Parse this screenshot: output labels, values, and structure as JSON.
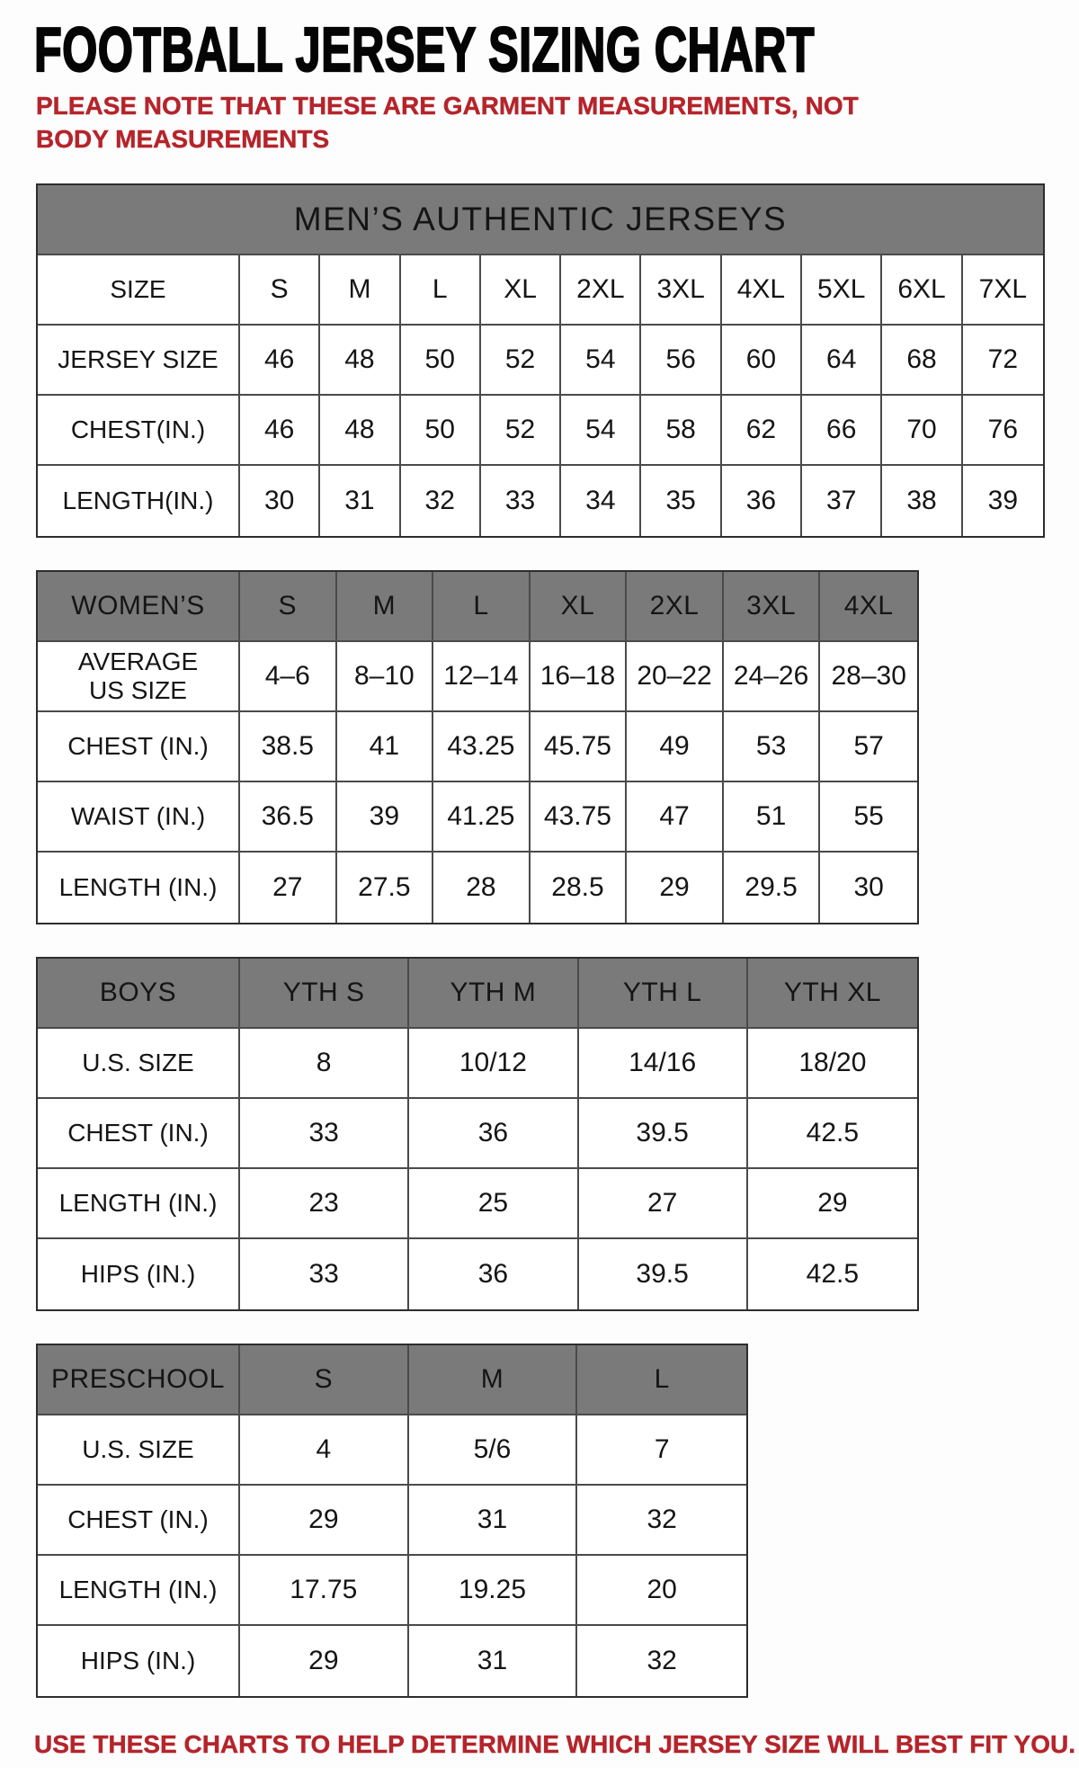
{
  "title": "FOOTBALL JERSEY SIZING CHART",
  "note": "PLEASE NOTE THAT THESE ARE GARMENT MEASUREMENTS, NOT BODY MEASUREMENTS",
  "footer": "USE THESE CHARTS TO HELP DETERMINE WHICH JERSEY SIZE WILL BEST FIT YOU.",
  "colors": {
    "accent_red": "#b5242b",
    "header_gray": "#7a7a7a"
  },
  "tables": {
    "mens": {
      "banner": "MEN’S AUTHENTIC JERSEYS",
      "rows": [
        {
          "label": "SIZE",
          "values": [
            "S",
            "M",
            "L",
            "XL",
            "2XL",
            "3XL",
            "4XL",
            "5XL",
            "6XL",
            "7XL"
          ]
        },
        {
          "label": "JERSEY SIZE",
          "values": [
            "46",
            "48",
            "50",
            "52",
            "54",
            "56",
            "60",
            "64",
            "68",
            "72"
          ]
        },
        {
          "label": "CHEST(IN.)",
          "values": [
            "46",
            "48",
            "50",
            "52",
            "54",
            "58",
            "62",
            "66",
            "70",
            "76"
          ]
        },
        {
          "label": "LENGTH(IN.)",
          "values": [
            "30",
            "31",
            "32",
            "33",
            "34",
            "35",
            "36",
            "37",
            "38",
            "39"
          ]
        }
      ]
    },
    "womens": {
      "header": {
        "label": "WOMEN’S",
        "sizes": [
          "S",
          "M",
          "L",
          "XL",
          "2XL",
          "3XL",
          "4XL"
        ]
      },
      "rows": [
        {
          "label": "AVERAGE\nUS SIZE",
          "values": [
            "4–6",
            "8–10",
            "12–14",
            "16–18",
            "20–22",
            "24–26",
            "28–30"
          ]
        },
        {
          "label": "CHEST (IN.)",
          "values": [
            "38.5",
            "41",
            "43.25",
            "45.75",
            "49",
            "53",
            "57"
          ]
        },
        {
          "label": "WAIST (IN.)",
          "values": [
            "36.5",
            "39",
            "41.25",
            "43.75",
            "47",
            "51",
            "55"
          ]
        },
        {
          "label": "LENGTH (IN.)",
          "values": [
            "27",
            "27.5",
            "28",
            "28.5",
            "29",
            "29.5",
            "30"
          ]
        }
      ]
    },
    "boys": {
      "header": {
        "label": "BOYS",
        "sizes": [
          "YTH S",
          "YTH M",
          "YTH L",
          "YTH XL"
        ]
      },
      "rows": [
        {
          "label": "U.S. SIZE",
          "values": [
            "8",
            "10/12",
            "14/16",
            "18/20"
          ]
        },
        {
          "label": "CHEST (IN.)",
          "values": [
            "33",
            "36",
            "39.5",
            "42.5"
          ]
        },
        {
          "label": "LENGTH (IN.)",
          "values": [
            "23",
            "25",
            "27",
            "29"
          ]
        },
        {
          "label": "HIPS (IN.)",
          "values": [
            "33",
            "36",
            "39.5",
            "42.5"
          ]
        }
      ]
    },
    "preschool": {
      "header": {
        "label": "PRESCHOOL",
        "sizes": [
          "S",
          "M",
          "L"
        ]
      },
      "rows": [
        {
          "label": "U.S. SIZE",
          "values": [
            "4",
            "5/6",
            "7"
          ]
        },
        {
          "label": "CHEST (IN.)",
          "values": [
            "29",
            "31",
            "32"
          ]
        },
        {
          "label": "LENGTH (IN.)",
          "values": [
            "17.75",
            "19.25",
            "20"
          ]
        },
        {
          "label": "HIPS (IN.)",
          "values": [
            "29",
            "31",
            "32"
          ]
        }
      ]
    }
  }
}
